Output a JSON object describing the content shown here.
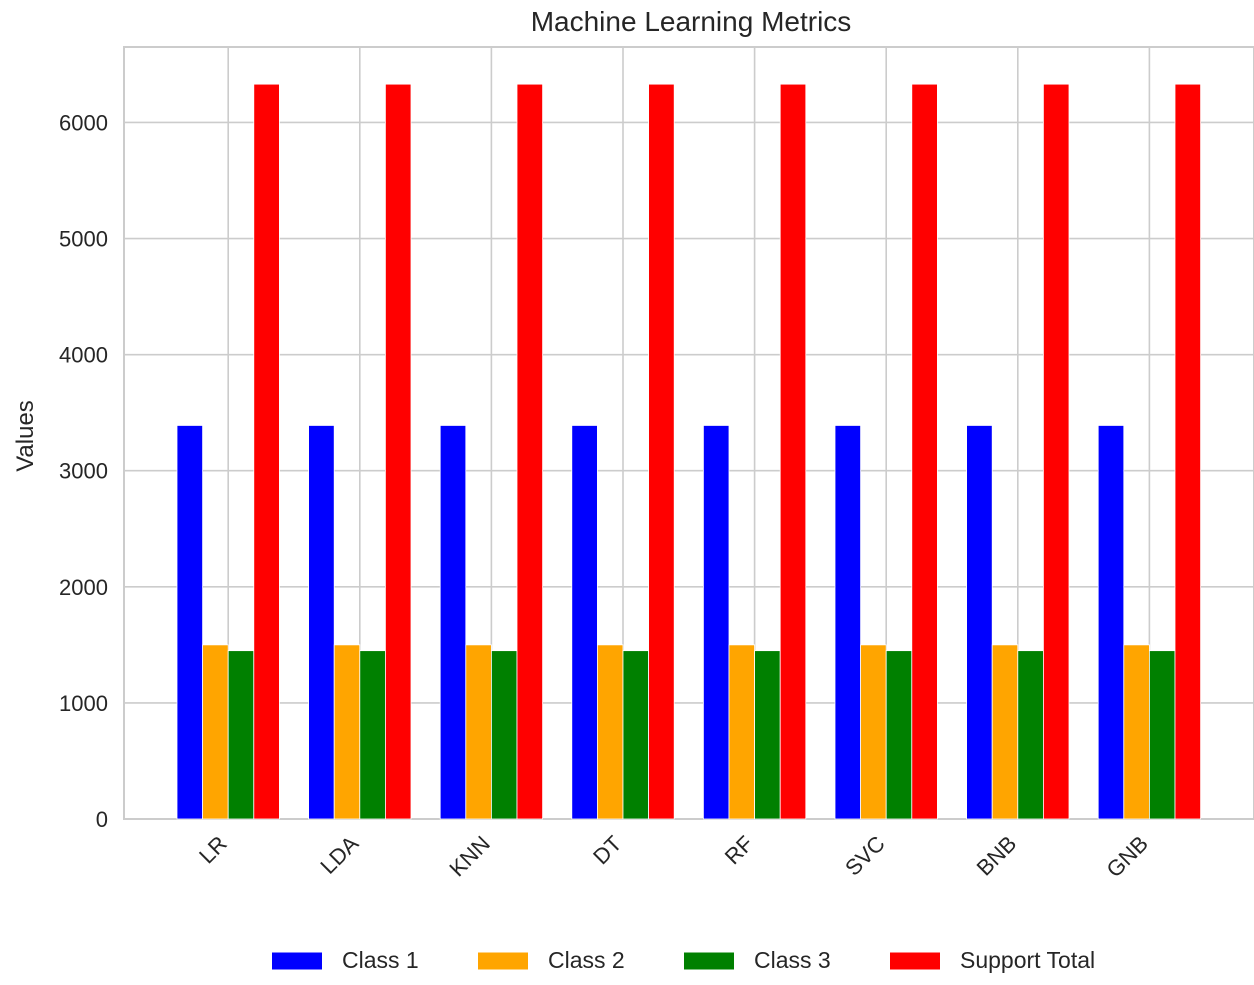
{
  "chart_data": {
    "type": "bar",
    "title": "Machine Learning Metrics",
    "xlabel": "",
    "ylabel": "Values",
    "categories": [
      "LR",
      "LDA",
      "KNN",
      "DT",
      "RF",
      "SVC",
      "BNB",
      "GNB"
    ],
    "series": [
      {
        "name": "Class 1",
        "color": "#0000ff",
        "values": [
          3390,
          3390,
          3390,
          3390,
          3390,
          3390,
          3390,
          3390
        ]
      },
      {
        "name": "Class 2",
        "color": "#ffa500",
        "values": [
          1500,
          1500,
          1500,
          1500,
          1500,
          1500,
          1500,
          1500
        ]
      },
      {
        "name": "Class 3",
        "color": "#008000",
        "values": [
          1450,
          1450,
          1450,
          1450,
          1450,
          1450,
          1450,
          1450
        ]
      },
      {
        "name": "Support Total",
        "color": "#ff0000",
        "values": [
          6330,
          6330,
          6330,
          6330,
          6330,
          6330,
          6330,
          6330
        ]
      }
    ],
    "yticks": [
      0,
      1000,
      2000,
      3000,
      4000,
      5000,
      6000
    ],
    "ylim": [
      0,
      6650
    ],
    "grid": true,
    "legend_position": "bottom-center",
    "tick_label_rotation": "45 degrees"
  }
}
